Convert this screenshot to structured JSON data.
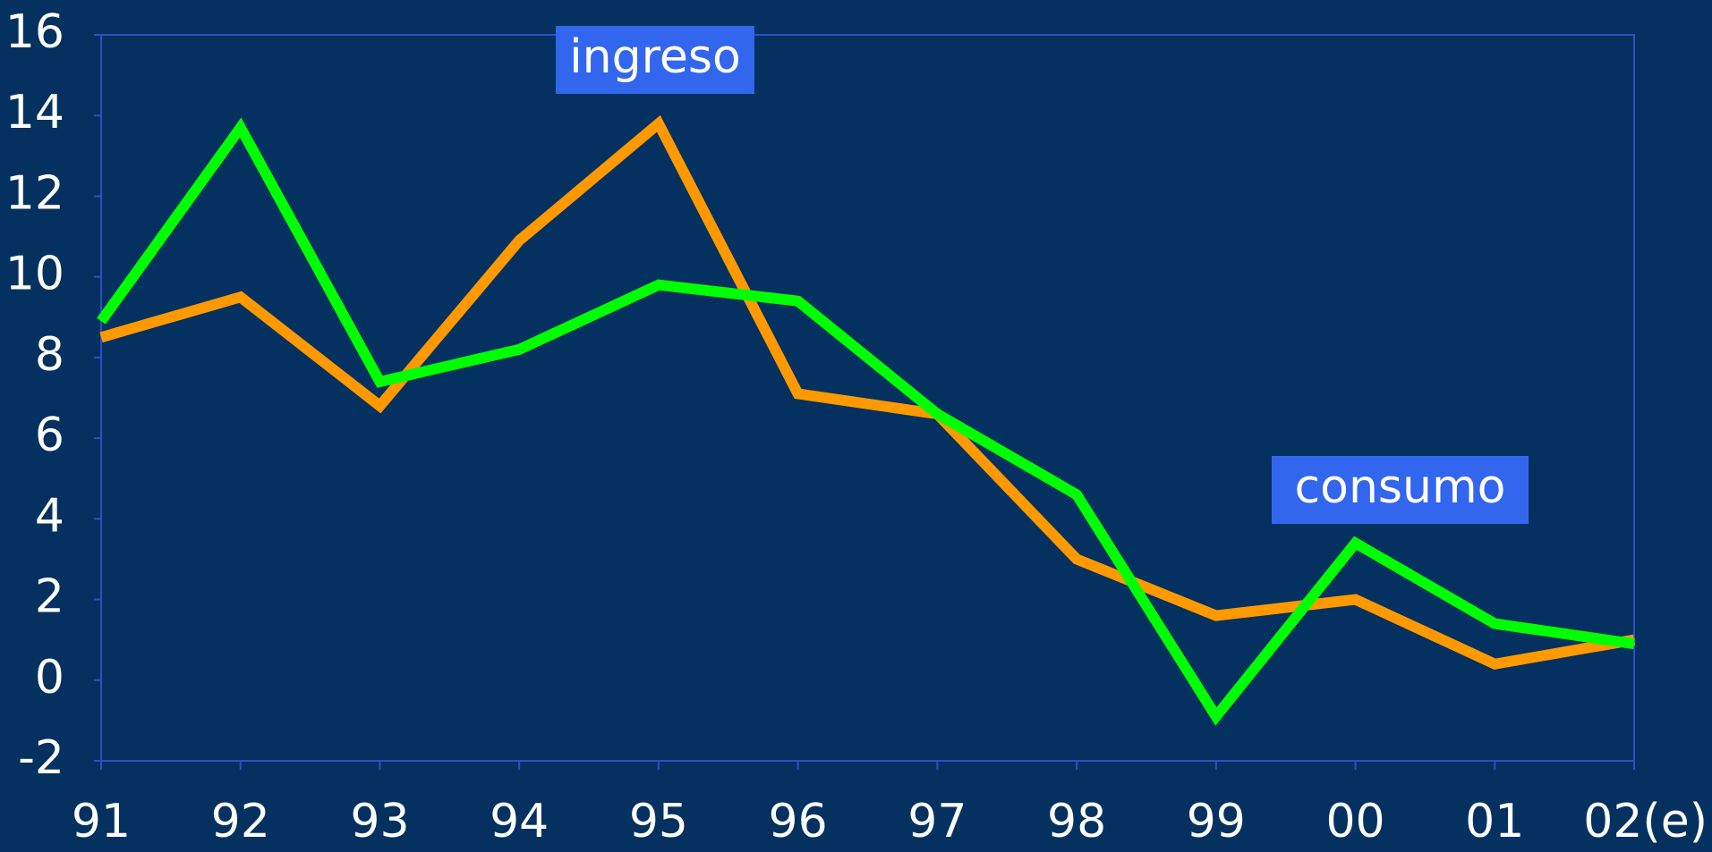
{
  "chart_data": {
    "type": "line",
    "categories": [
      "91",
      "92",
      "93",
      "94",
      "95",
      "96",
      "97",
      "98",
      "99",
      "00",
      "01",
      "02(e)"
    ],
    "series": [
      {
        "name": "ingreso",
        "color": "#ff9900",
        "values": [
          8.5,
          9.5,
          6.8,
          10.9,
          13.8,
          7.1,
          6.6,
          3.0,
          1.6,
          2.0,
          0.4,
          1.0
        ]
      },
      {
        "name": "consumo",
        "color": "#00ff00",
        "values": [
          8.9,
          13.7,
          7.4,
          8.2,
          9.8,
          9.4,
          6.6,
          4.6,
          -0.9,
          3.4,
          1.4,
          0.9
        ]
      }
    ],
    "ylim": [
      -2,
      16
    ],
    "yticks": [
      -2,
      0,
      2,
      4,
      6,
      8,
      10,
      12,
      14,
      16
    ],
    "grid": false
  }
}
